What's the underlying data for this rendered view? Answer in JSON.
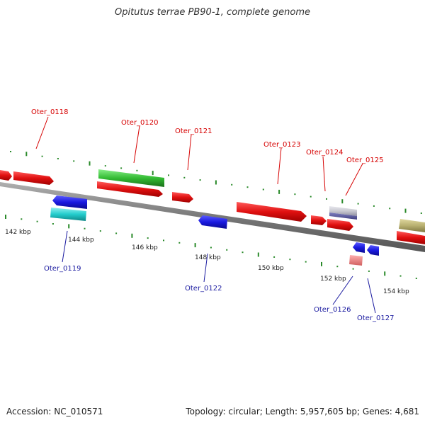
{
  "title": "Opitutus terrae PB90-1, complete genome",
  "footer": {
    "accession": "Accession: NC_010571",
    "summary": "Topology: circular; Length: 5,957,605 bp; Genes: 4,681"
  },
  "colors": {
    "label_top": "#d60000",
    "label_bottom": "#1a1aa0",
    "tick": "#2a8a2a",
    "backbone": "#888888"
  },
  "scale_labels": [
    "142 kbp",
    "144 kbp",
    "146 kbp",
    "148 kbp",
    "150 kbp",
    "152 kbp",
    "154 kbp"
  ],
  "gene_labels": {
    "top": [
      "Oter_0118",
      "Oter_0120",
      "Oter_0121",
      "Oter_0123",
      "Oter_0124",
      "Oter_0125"
    ],
    "bottom": [
      "Oter_0119",
      "Oter_0122",
      "Oter_0126",
      "Oter_0127"
    ]
  },
  "features": [
    {
      "id": "left-edge-gene",
      "color": "#e01010",
      "direction": "right"
    },
    {
      "id": "Oter_0118",
      "color": "#e01010",
      "direction": "right"
    },
    {
      "id": "Oter_0120",
      "color": "#33bb33",
      "direction": "none"
    },
    {
      "id": "Oter_0120-lower",
      "color": "#e01010",
      "direction": "right"
    },
    {
      "id": "Oter_0119",
      "color": "#1a1ae0",
      "direction": "left"
    },
    {
      "id": "Oter_0119-rna",
      "color": "#22cccc",
      "direction": "none"
    },
    {
      "id": "Oter_0121",
      "color": "#e01010",
      "direction": "right"
    },
    {
      "id": "Oter_0122",
      "color": "#1a1ae0",
      "direction": "left"
    },
    {
      "id": "Oter_0123",
      "color": "#e01010",
      "direction": "right"
    },
    {
      "id": "Oter_0124",
      "color": "#e01010",
      "direction": "right"
    },
    {
      "id": "Oter_0125",
      "color": "#c8c8d0",
      "direction": "none"
    },
    {
      "id": "Oter_0125-lower",
      "color": "#e01010",
      "direction": "right"
    },
    {
      "id": "Oter_0126",
      "color": "#1a1ae0",
      "direction": "left"
    },
    {
      "id": "Oter_0127",
      "color": "#1a1ae0",
      "direction": "left"
    },
    {
      "id": "Oter_0126-rna",
      "color": "#f08080",
      "direction": "none"
    },
    {
      "id": "right-edge-olive",
      "color": "#b8b070",
      "direction": "none"
    },
    {
      "id": "right-edge-red",
      "color": "#e01010",
      "direction": "right"
    }
  ]
}
